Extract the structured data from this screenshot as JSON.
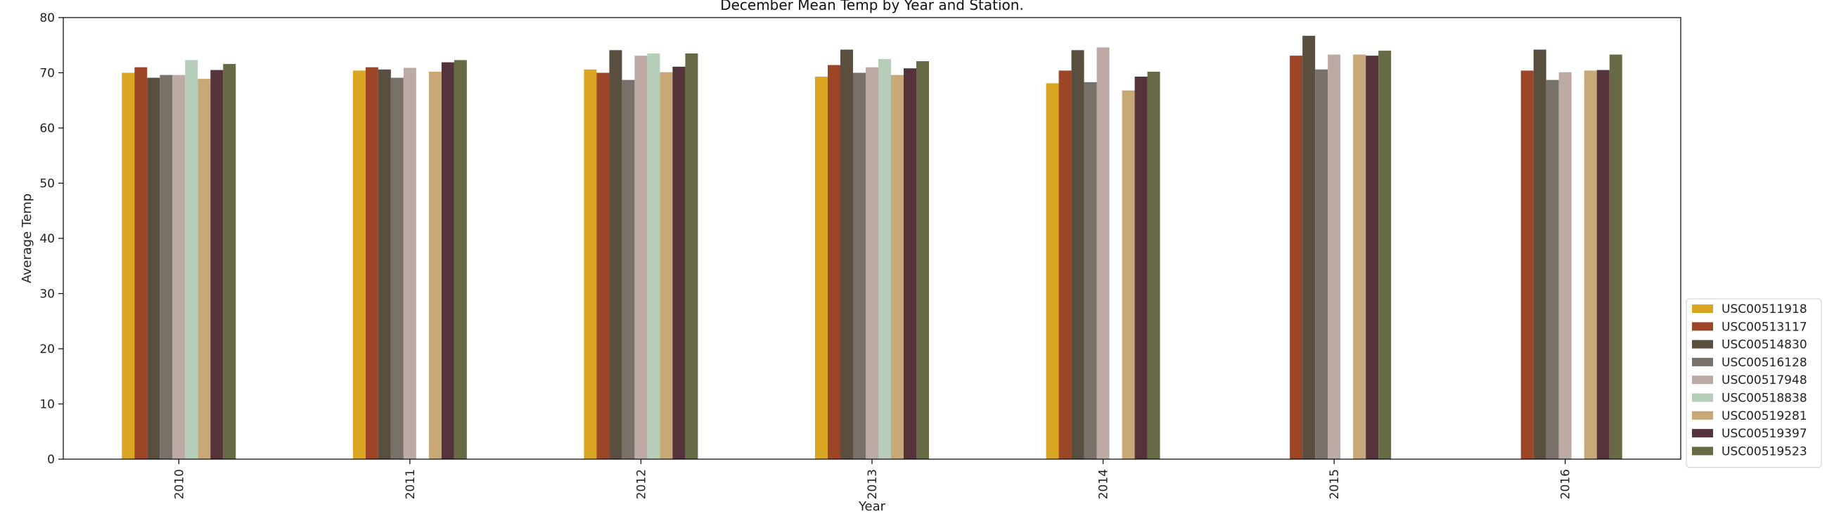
{
  "chart_data": {
    "type": "bar",
    "title": "December Mean Temp by Year and Station.",
    "xlabel": "Year",
    "ylabel": "Average Temp",
    "ylim": [
      0,
      80
    ],
    "yticks": [
      0,
      10,
      20,
      30,
      40,
      50,
      60,
      70,
      80
    ],
    "categories": [
      "2010",
      "2011",
      "2012",
      "2013",
      "2014",
      "2015",
      "2016"
    ],
    "legend_position": "lower-right-outside",
    "series": [
      {
        "name": "USC00511918",
        "color": "#DAA520",
        "values": [
          70.0,
          70.4,
          70.6,
          69.3,
          68.1,
          null,
          null
        ]
      },
      {
        "name": "USC00513117",
        "color": "#9C4527",
        "values": [
          71.0,
          71.0,
          70.0,
          71.4,
          70.4,
          73.1,
          70.4
        ]
      },
      {
        "name": "USC00514830",
        "color": "#5A4E3F",
        "values": [
          69.1,
          70.6,
          74.1,
          74.2,
          74.1,
          76.7,
          74.2
        ]
      },
      {
        "name": "USC00516128",
        "color": "#777169",
        "values": [
          69.6,
          69.1,
          68.7,
          70.0,
          68.3,
          70.6,
          68.7
        ]
      },
      {
        "name": "USC00517948",
        "color": "#BDAAA4",
        "values": [
          69.6,
          70.9,
          73.1,
          71.0,
          74.6,
          73.3,
          70.1
        ]
      },
      {
        "name": "USC00518838",
        "color": "#B6CDB9",
        "values": [
          72.3,
          null,
          73.5,
          72.5,
          null,
          null,
          null
        ]
      },
      {
        "name": "USC00519281",
        "color": "#C8A876",
        "values": [
          68.9,
          70.2,
          70.1,
          69.6,
          66.8,
          73.3,
          70.4
        ]
      },
      {
        "name": "USC00519397",
        "color": "#54343A",
        "values": [
          70.5,
          71.9,
          71.1,
          70.8,
          69.3,
          73.1,
          70.5
        ]
      },
      {
        "name": "USC00519523",
        "color": "#686A46",
        "values": [
          71.6,
          72.3,
          73.5,
          72.1,
          70.2,
          74.0,
          73.3
        ]
      }
    ]
  }
}
